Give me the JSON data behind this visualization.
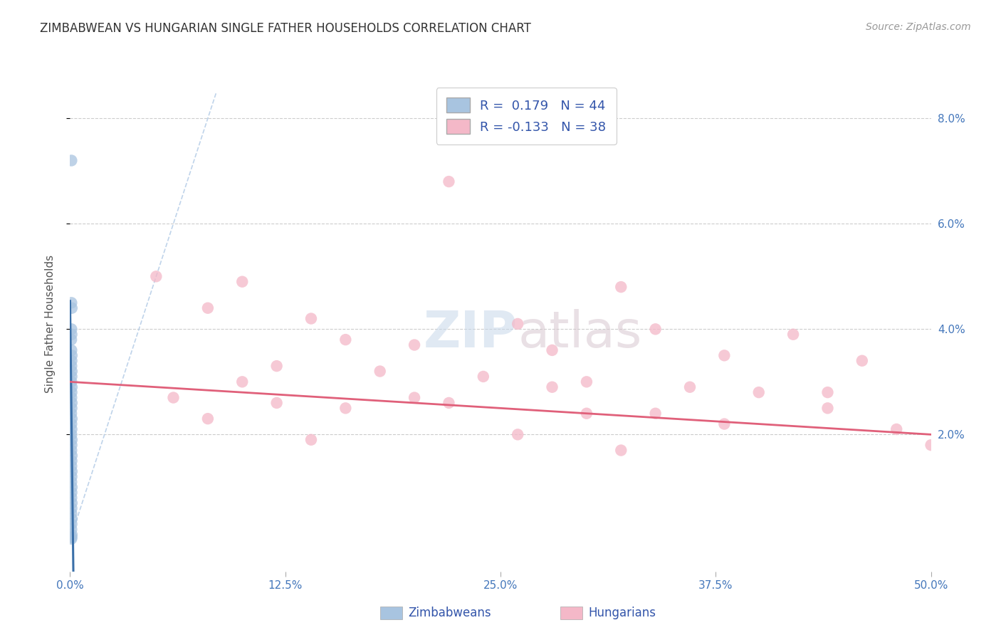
{
  "title": "ZIMBABWEAN VS HUNGARIAN SINGLE FATHER HOUSEHOLDS CORRELATION CHART",
  "source": "Source: ZipAtlas.com",
  "ylabel": "Single Father Households",
  "ylabel_right_ticks": [
    "8.0%",
    "6.0%",
    "4.0%",
    "2.0%"
  ],
  "ylabel_right_vals": [
    0.08,
    0.06,
    0.04,
    0.02
  ],
  "xlim": [
    0.0,
    0.5
  ],
  "ylim": [
    -0.006,
    0.088
  ],
  "legend_zim": "Zimbabweans",
  "legend_hun": "Hungarians",
  "R_zim": 0.179,
  "N_zim": 44,
  "R_hun": -0.133,
  "N_hun": 38,
  "color_zim": "#a8c4e0",
  "color_zim_line": "#3a6fa8",
  "color_hun": "#f4b8c8",
  "color_hun_line": "#e0607a",
  "color_diagonal": "#b8cfe8",
  "background_color": "#ffffff",
  "watermark_zip": "ZIP",
  "watermark_atlas": "atlas",
  "zim_x": [
    0.0008,
    0.0008,
    0.001,
    0.0008,
    0.0009,
    0.0007,
    0.0008,
    0.001,
    0.0009,
    0.0008,
    0.001,
    0.0009,
    0.0008,
    0.001,
    0.0009,
    0.0008,
    0.001,
    0.0009,
    0.0007,
    0.001,
    0.0008,
    0.0009,
    0.0008,
    0.001,
    0.0009,
    0.0008,
    0.001,
    0.0009,
    0.0008,
    0.001,
    0.0009,
    0.0008,
    0.001,
    0.0009,
    0.0008,
    0.001,
    0.0009,
    0.0008,
    0.001,
    0.0009,
    0.0008,
    0.001,
    0.0009,
    0.0008
  ],
  "zim_y": [
    0.072,
    0.045,
    0.044,
    0.04,
    0.039,
    0.038,
    0.036,
    0.035,
    0.034,
    0.033,
    0.032,
    0.031,
    0.03,
    0.029,
    0.028,
    0.027,
    0.026,
    0.025,
    0.024,
    0.023,
    0.022,
    0.021,
    0.02,
    0.019,
    0.018,
    0.017,
    0.016,
    0.015,
    0.014,
    0.013,
    0.012,
    0.011,
    0.01,
    0.009,
    0.008,
    0.007,
    0.006,
    0.005,
    0.004,
    0.003,
    0.002,
    0.001,
    0.0005,
    0.0002
  ],
  "hun_x": [
    0.22,
    0.05,
    0.1,
    0.32,
    0.08,
    0.14,
    0.26,
    0.34,
    0.42,
    0.16,
    0.2,
    0.28,
    0.38,
    0.46,
    0.12,
    0.18,
    0.24,
    0.3,
    0.36,
    0.44,
    0.06,
    0.22,
    0.16,
    0.34,
    0.1,
    0.28,
    0.4,
    0.2,
    0.12,
    0.44,
    0.3,
    0.08,
    0.38,
    0.48,
    0.26,
    0.14,
    0.5,
    0.32
  ],
  "hun_y": [
    0.068,
    0.05,
    0.049,
    0.048,
    0.044,
    0.042,
    0.041,
    0.04,
    0.039,
    0.038,
    0.037,
    0.036,
    0.035,
    0.034,
    0.033,
    0.032,
    0.031,
    0.03,
    0.029,
    0.028,
    0.027,
    0.026,
    0.025,
    0.024,
    0.03,
    0.029,
    0.028,
    0.027,
    0.026,
    0.025,
    0.024,
    0.023,
    0.022,
    0.021,
    0.02,
    0.019,
    0.018,
    0.017
  ]
}
